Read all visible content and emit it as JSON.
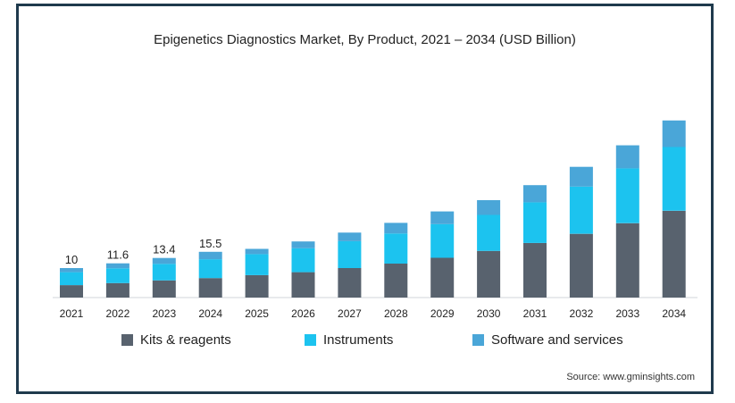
{
  "chart_data": {
    "type": "bar",
    "stacked": true,
    "title": "Epigenetics Diagnostics Market, By Product, 2021 – 2034 (USD Billion)",
    "categories": [
      "2021",
      "2022",
      "2023",
      "2024",
      "2025",
      "2026",
      "2027",
      "2028",
      "2029",
      "2030",
      "2031",
      "2032",
      "2033",
      "2034"
    ],
    "series": [
      {
        "name": "Kits & reagents",
        "color": "#58626e",
        "values": [
          4.2,
          4.9,
          5.8,
          6.6,
          7.6,
          8.6,
          10.0,
          11.5,
          13.5,
          15.8,
          18.5,
          21.6,
          25.2,
          29.4
        ]
      },
      {
        "name": "Instruments",
        "color": "#1cc3ef",
        "values": [
          4.4,
          5.0,
          5.6,
          6.4,
          7.1,
          8.1,
          9.1,
          10.2,
          11.4,
          12.2,
          13.8,
          16.0,
          18.6,
          21.6
        ]
      },
      {
        "name": "Software and services",
        "color": "#4aa6d8",
        "values": [
          1.4,
          1.7,
          2.0,
          2.5,
          1.8,
          2.3,
          2.9,
          3.6,
          4.3,
          5.0,
          5.8,
          6.7,
          7.8,
          9.0
        ]
      }
    ],
    "data_labels": [
      "10",
      "11.6",
      "13.4",
      "15.5",
      "",
      "",
      "",
      "",
      "",
      "",
      "",
      "",
      "",
      ""
    ],
    "ylim": [
      0,
      66
    ],
    "grid": false,
    "legend_position": "bottom"
  },
  "source": "Source: www.gminsights.com"
}
